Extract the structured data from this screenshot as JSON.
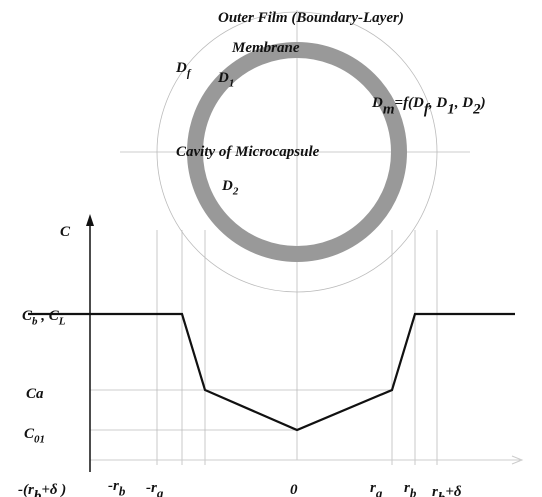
{
  "labels": [
    {
      "parts": [
        {
          "text": "Outer Film (Boundary-Layer)"
        }
      ]
    },
    {
      "parts": [
        {
          "text": "Membrane"
        }
      ]
    },
    {
      "parts": [
        {
          "text": "D"
        },
        {
          "sub": "f"
        }
      ]
    },
    {
      "parts": [
        {
          "text": "D"
        },
        {
          "sub": "1"
        }
      ]
    },
    {
      "parts": [
        {
          "text": "D"
        },
        {
          "sub": "m"
        },
        {
          "text": "=f(D"
        },
        {
          "sub": "f"
        },
        {
          "text": ", D"
        },
        {
          "sub": "1"
        },
        {
          "text": ", D"
        },
        {
          "sub": "2"
        },
        {
          "text": ")"
        }
      ]
    },
    {
      "parts": [
        {
          "text": "Cavity  of  Microcapsule"
        }
      ]
    },
    {
      "parts": [
        {
          "text": "D"
        },
        {
          "sub": "2"
        }
      ]
    },
    {
      "parts": [
        {
          "text": "C"
        }
      ]
    },
    {
      "parts": [
        {
          "text": "C"
        },
        {
          "sub": "b"
        },
        {
          "text": " , C"
        },
        {
          "sub": "L"
        }
      ]
    },
    {
      "parts": [
        {
          "text": "Ca"
        }
      ]
    },
    {
      "parts": [
        {
          "text": "C"
        },
        {
          "sub": "01"
        }
      ]
    },
    {
      "parts": [
        {
          "text": "-(r"
        },
        {
          "sub": "b"
        },
        {
          "text": "+δ )"
        }
      ]
    },
    {
      "parts": [
        {
          "text": "-r"
        },
        {
          "sub": "b"
        }
      ]
    },
    {
      "parts": [
        {
          "text": "-r"
        },
        {
          "sub": "a"
        }
      ]
    },
    {
      "parts": [
        {
          "text": "0"
        }
      ]
    },
    {
      "parts": [
        {
          "text": "r"
        },
        {
          "sub": "a"
        }
      ]
    },
    {
      "parts": [
        {
          "text": "r"
        },
        {
          "sub": "b"
        }
      ]
    },
    {
      "parts": [
        {
          "text": "r"
        },
        {
          "sub": "b"
        },
        {
          "text": "+δ"
        }
      ]
    }
  ]
}
